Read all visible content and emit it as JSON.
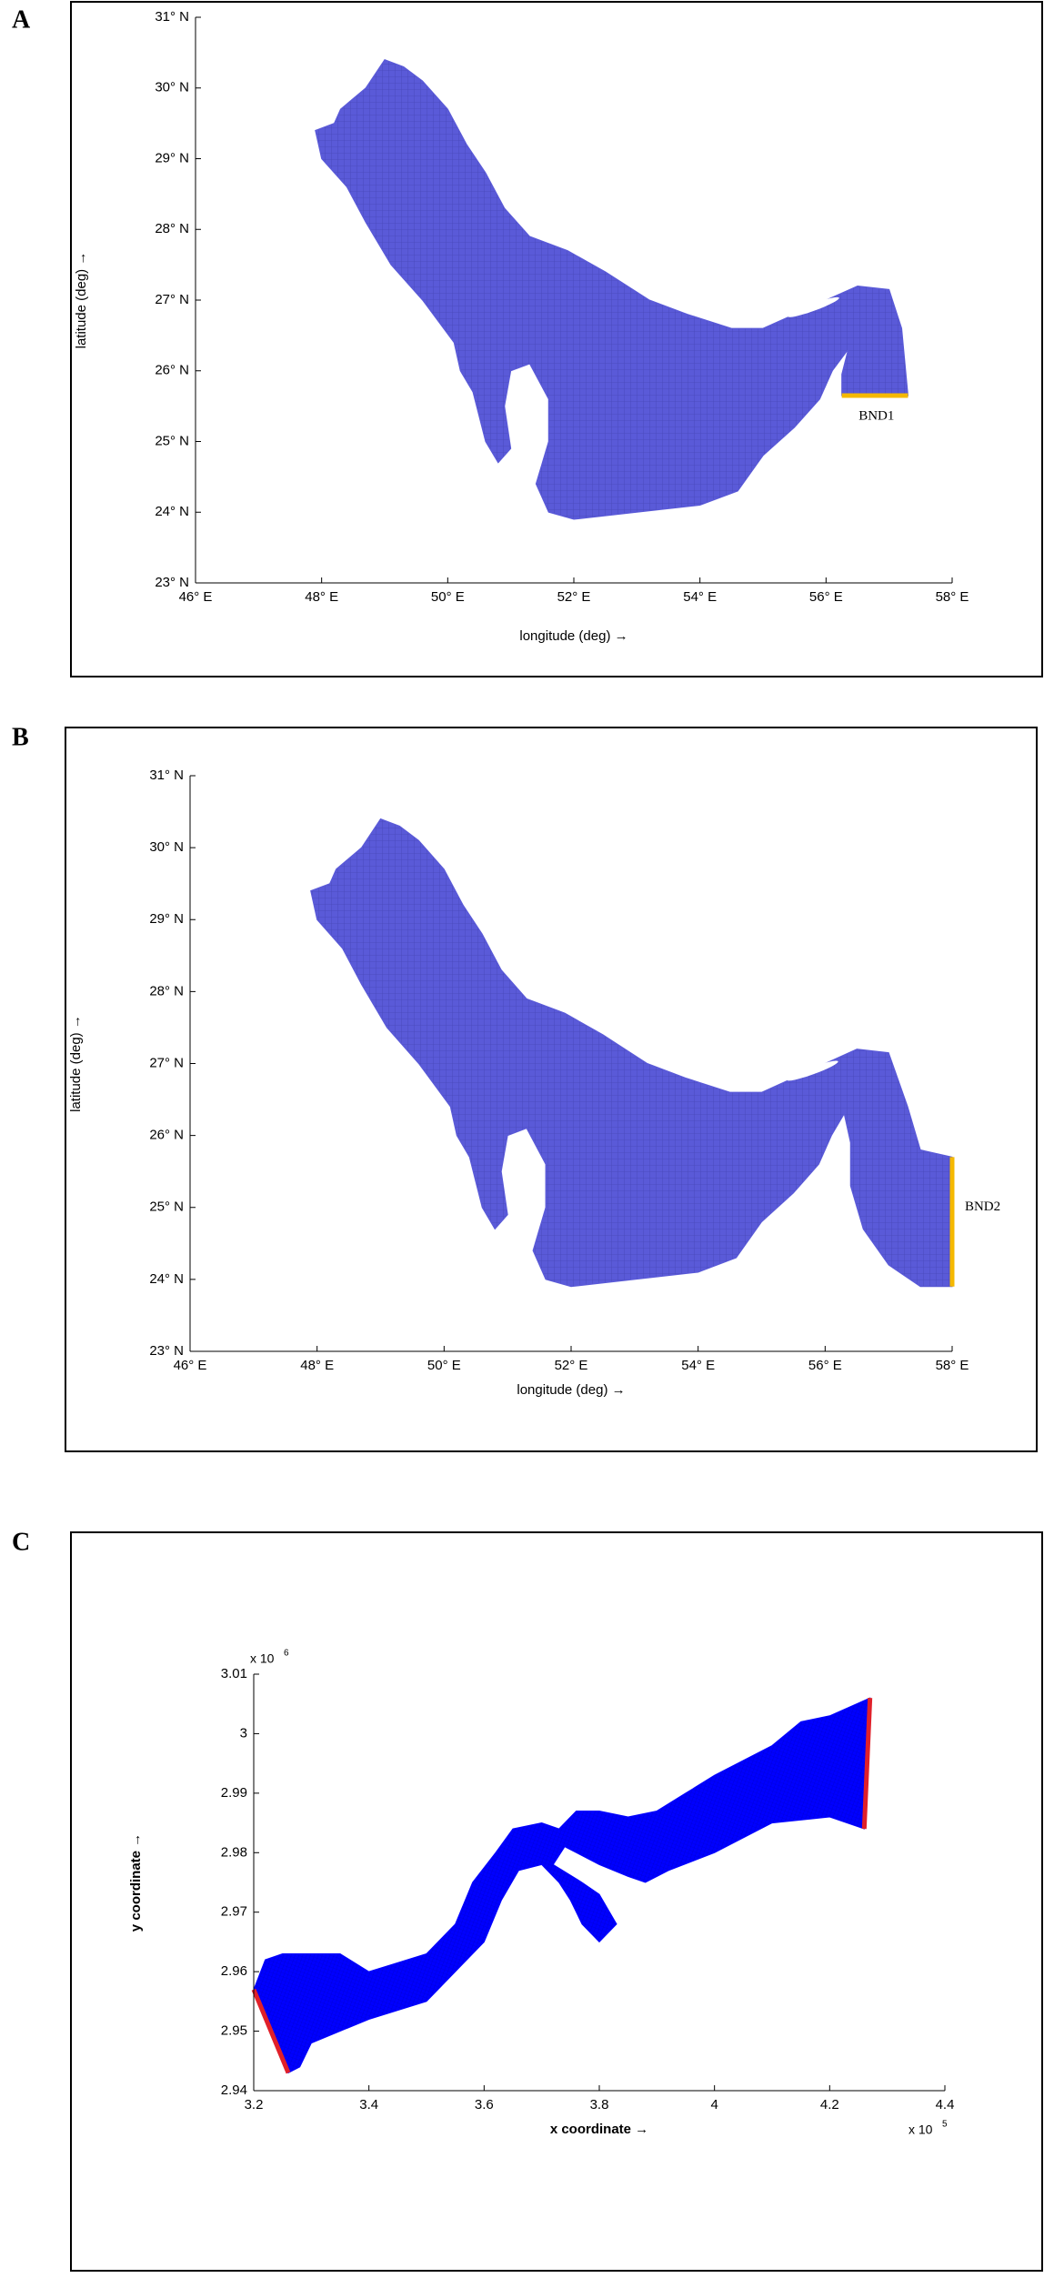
{
  "chart_data": [
    {
      "type": "map",
      "panel": "A",
      "xlabel": "longitude (deg) →",
      "ylabel": "latitude (deg) →",
      "xlim": [
        46,
        58
      ],
      "ylim": [
        23,
        31
      ],
      "xticks": [
        {
          "value": 46,
          "label": "46° E"
        },
        {
          "value": 48,
          "label": "48° E"
        },
        {
          "value": 50,
          "label": "50° E"
        },
        {
          "value": 52,
          "label": "52° E"
        },
        {
          "value": 54,
          "label": "54° E"
        },
        {
          "value": 56,
          "label": "56° E"
        },
        {
          "value": 58,
          "label": "58° E"
        }
      ],
      "yticks": [
        {
          "value": 23,
          "label": "23° N"
        },
        {
          "value": 24,
          "label": "24° N"
        },
        {
          "value": 25,
          "label": "25° N"
        },
        {
          "value": 26,
          "label": "26° N"
        },
        {
          "value": 27,
          "label": "27° N"
        },
        {
          "value": 28,
          "label": "28° N"
        },
        {
          "value": 29,
          "label": "29° N"
        },
        {
          "value": 30,
          "label": "30° N"
        },
        {
          "value": 31,
          "label": "31° N"
        }
      ],
      "annotation": "BND1",
      "color": "#5a5ad8",
      "boundary_color": "#f5b800"
    },
    {
      "type": "map",
      "panel": "B",
      "xlabel": "longitude (deg) →",
      "ylabel": "latitude (deg) →",
      "xlim": [
        46,
        58
      ],
      "ylim": [
        23,
        31
      ],
      "xticks": [
        {
          "value": 46,
          "label": "46° E"
        },
        {
          "value": 48,
          "label": "48° E"
        },
        {
          "value": 50,
          "label": "50° E"
        },
        {
          "value": 52,
          "label": "52° E"
        },
        {
          "value": 54,
          "label": "54° E"
        },
        {
          "value": 56,
          "label": "56° E"
        },
        {
          "value": 58,
          "label": "58° E"
        }
      ],
      "yticks": [
        {
          "value": 23,
          "label": "23° N"
        },
        {
          "value": 24,
          "label": "24° N"
        },
        {
          "value": 25,
          "label": "25° N"
        },
        {
          "value": 26,
          "label": "26° N"
        },
        {
          "value": 27,
          "label": "27° N"
        },
        {
          "value": 28,
          "label": "28° N"
        },
        {
          "value": 29,
          "label": "29° N"
        },
        {
          "value": 30,
          "label": "30° N"
        },
        {
          "value": 31,
          "label": "31° N"
        }
      ],
      "annotation": "BND2",
      "color": "#5a5ad8",
      "boundary_color": "#f5b800"
    },
    {
      "type": "map",
      "panel": "C",
      "xlabel": "x coordinate →",
      "ylabel": "y coordinate →",
      "xlim": [
        3.2,
        4.4
      ],
      "ylim": [
        2.94,
        3.01
      ],
      "xticks": [
        3.2,
        3.4,
        3.6,
        3.8,
        4,
        4.2,
        4.4
      ],
      "yticks": [
        2.94,
        2.95,
        2.96,
        2.97,
        2.98,
        2.99,
        3,
        3.01
      ],
      "x_multiplier": {
        "base": "x 10",
        "exponent": "5"
      },
      "y_multiplier": {
        "base": "x 10",
        "exponent": "6"
      },
      "color": "#0000ff",
      "boundary_color": "#e0202a"
    }
  ]
}
